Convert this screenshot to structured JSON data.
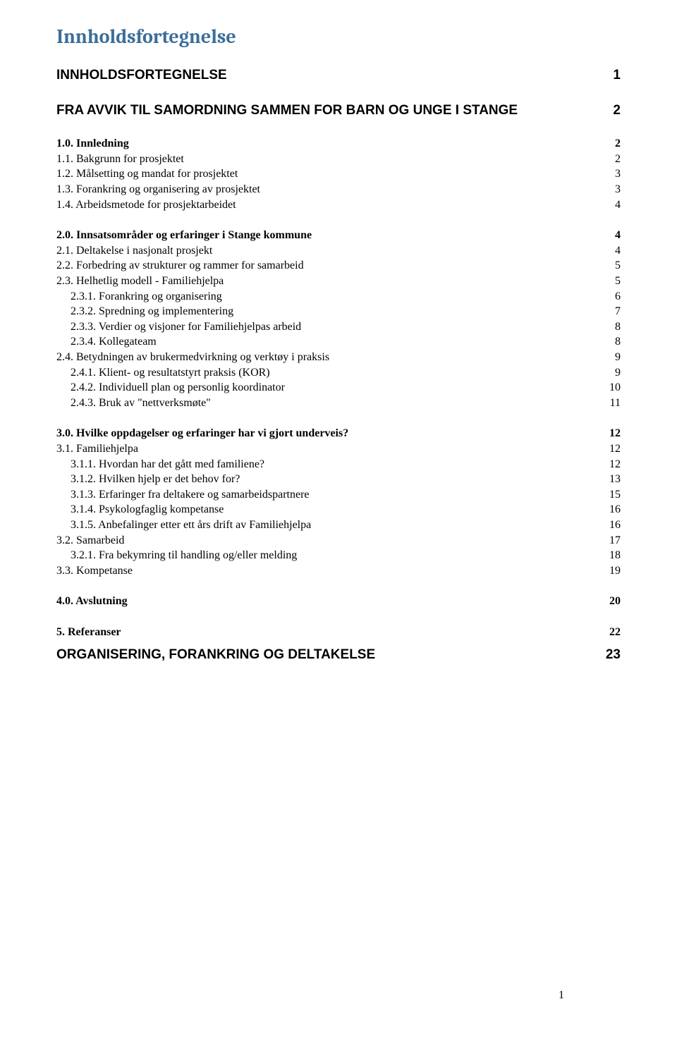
{
  "title": "Innholdsfortegnelse",
  "page_number": "1",
  "colors": {
    "title": "#3b6e99",
    "text": "#000000",
    "background": "#ffffff"
  },
  "fonts": {
    "title_family": "Cambria",
    "title_size_pt": 21,
    "h1_family": "Arial",
    "h1_size_pt": 14,
    "body_family": "Times New Roman",
    "body_size_pt": 12
  },
  "toc": [
    {
      "type": "h1",
      "label": "INNHOLDSFORTEGNELSE",
      "page": "1"
    },
    {
      "type": "h1",
      "label": "FRA AVVIK TIL SAMORDNING SAMMEN FOR BARN OG UNGE I STANGE",
      "page": "2"
    },
    {
      "type": "bold",
      "indent": 0,
      "label": "1.0. Innledning",
      "page": "2"
    },
    {
      "type": "item",
      "indent": 0,
      "label": "1.1. Bakgrunn for prosjektet",
      "page": "2"
    },
    {
      "type": "item",
      "indent": 0,
      "label": "1.2. Målsetting og mandat for prosjektet",
      "page": "3"
    },
    {
      "type": "item",
      "indent": 0,
      "label": "1.3. Forankring og organisering av prosjektet",
      "page": "3"
    },
    {
      "type": "item",
      "indent": 0,
      "label": "1.4. Arbeidsmetode for prosjektarbeidet",
      "page": "4",
      "gap_after": true
    },
    {
      "type": "bold",
      "indent": 0,
      "label": "2.0. Innsatsområder og erfaringer i Stange kommune",
      "page": "4"
    },
    {
      "type": "item",
      "indent": 0,
      "label": "2.1. Deltakelse i nasjonalt prosjekt",
      "page": "4"
    },
    {
      "type": "item",
      "indent": 0,
      "label": "2.2. Forbedring av strukturer og rammer for samarbeid",
      "page": "5"
    },
    {
      "type": "item",
      "indent": 0,
      "label": "2.3. Helhetlig modell - Familiehjelpa",
      "page": "5"
    },
    {
      "type": "item",
      "indent": 1,
      "label": "2.3.1. Forankring og organisering",
      "page": "6"
    },
    {
      "type": "item",
      "indent": 1,
      "label": "2.3.2. Spredning og implementering",
      "page": "7"
    },
    {
      "type": "item",
      "indent": 1,
      "label": "2.3.3. Verdier og visjoner for Familiehjelpas arbeid",
      "page": "8"
    },
    {
      "type": "item",
      "indent": 1,
      "label": "2.3.4. Kollegateam",
      "page": "8"
    },
    {
      "type": "item",
      "indent": 0,
      "label": "2.4. Betydningen av brukermedvirkning og verktøy i praksis",
      "page": "9"
    },
    {
      "type": "item",
      "indent": 1,
      "label": "2.4.1. Klient- og resultatstyrt praksis (KOR)",
      "page": "9"
    },
    {
      "type": "item",
      "indent": 1,
      "label": "2.4.2. Individuell plan og personlig koordinator",
      "page": "10"
    },
    {
      "type": "item",
      "indent": 1,
      "label": "2.4.3. Bruk av \"nettverksmøte\"",
      "page": "11",
      "gap_after": true
    },
    {
      "type": "bold",
      "indent": 0,
      "label": "3.0. Hvilke oppdagelser og erfaringer har vi gjort underveis?",
      "page": "12"
    },
    {
      "type": "item",
      "indent": 0,
      "label": "3.1. Familiehjelpa",
      "page": "12"
    },
    {
      "type": "item",
      "indent": 1,
      "label": "3.1.1. Hvordan har det gått med familiene?",
      "page": "12"
    },
    {
      "type": "item",
      "indent": 1,
      "label": "3.1.2. Hvilken hjelp er det behov for?",
      "page": "13"
    },
    {
      "type": "item",
      "indent": 1,
      "label": "3.1.3. Erfaringer fra deltakere og samarbeidspartnere",
      "page": "15"
    },
    {
      "type": "item",
      "indent": 1,
      "label": "3.1.4. Psykologfaglig kompetanse",
      "page": "16"
    },
    {
      "type": "item",
      "indent": 1,
      "label": "3.1.5. Anbefalinger etter ett års drift av Familiehjelpa",
      "page": "16"
    },
    {
      "type": "item",
      "indent": 0,
      "label": "3.2. Samarbeid",
      "page": "17"
    },
    {
      "type": "item",
      "indent": 1,
      "label": "3.2.1. Fra bekymring til handling og/eller melding",
      "page": "18"
    },
    {
      "type": "item",
      "indent": 0,
      "label": "3.3. Kompetanse",
      "page": "19",
      "gap_after": true
    },
    {
      "type": "bold",
      "indent": 0,
      "label": "4.0. Avslutning",
      "page": "20",
      "gap_after": true
    },
    {
      "type": "bold",
      "indent": 0,
      "label": "5. Referanser",
      "page": "22"
    },
    {
      "type": "h1",
      "label": "ORGANISERING, FORANKRING OG DELTAKELSE",
      "page": "23"
    }
  ]
}
